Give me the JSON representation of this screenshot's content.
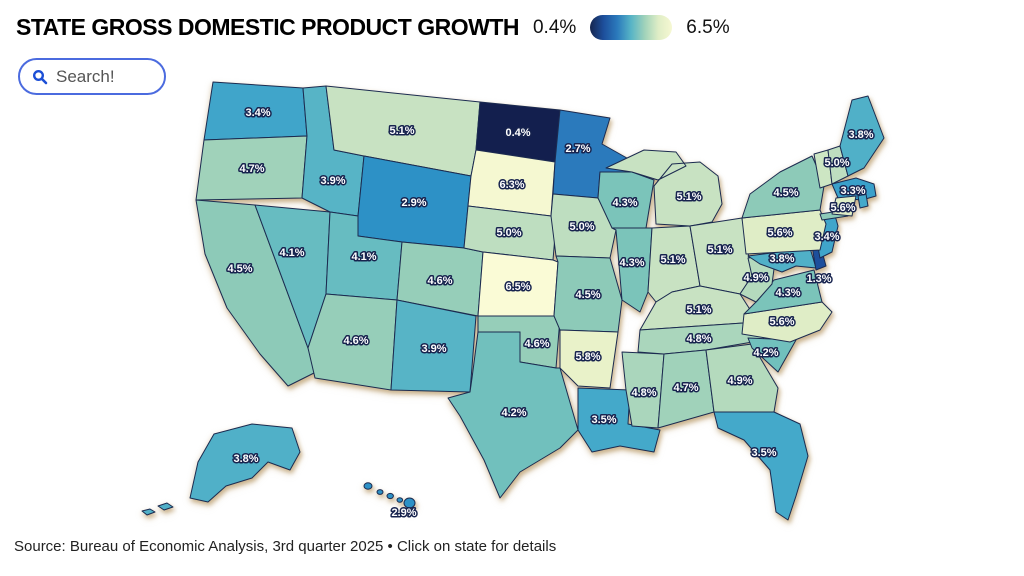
{
  "title": "STATE GROSS DOMESTIC PRODUCT GROWTH",
  "legend": {
    "min_label": "0.4%",
    "max_label": "6.5%"
  },
  "search": {
    "placeholder": "Search!"
  },
  "footer": {
    "source": "Source: Bureau of Economic Analysis, 3rd quarter 2025 • Click on state for details"
  },
  "colors": {
    "state_outline": "#1c2b50",
    "label_text": "#ffffff",
    "label_outline": "#17234e",
    "search_border": "#4b6bdf",
    "search_icon": "#1c4fd6",
    "legend_gradient": [
      "#16254e",
      "#1d4f9c",
      "#2b7abc",
      "#57b4c6",
      "#a0d2ba",
      "#dfedc6",
      "#f6f8d2"
    ]
  },
  "chart_data": {
    "type": "choropleth",
    "region": "United States",
    "title": "STATE GROSS DOMESTIC PRODUCT GROWTH",
    "unit": "%",
    "scale": {
      "min": 0.4,
      "max": 6.5,
      "low_color": "#131f4e",
      "high_color": "#fafbd6"
    },
    "states": [
      {
        "abbr": "WA",
        "name": "Washington",
        "value": 3.4,
        "label": "3.4%",
        "color": "#40a5ca"
      },
      {
        "abbr": "OR",
        "name": "Oregon",
        "value": 4.7,
        "label": "4.7%",
        "color": "#a0d2ba"
      },
      {
        "abbr": "CA",
        "name": "California",
        "value": 4.5,
        "label": "4.5%",
        "color": "#8dcab8"
      },
      {
        "abbr": "NV",
        "name": "Nevada",
        "value": 4.1,
        "label": "4.1%",
        "color": "#67bcc1"
      },
      {
        "abbr": "ID",
        "name": "Idaho",
        "value": 3.9,
        "label": "3.9%",
        "color": "#57b4c6"
      },
      {
        "abbr": "MT",
        "name": "Montana",
        "value": 5.1,
        "label": "5.1%",
        "color": "#c8e2c2"
      },
      {
        "abbr": "WY",
        "name": "Wyoming",
        "value": 2.9,
        "label": "2.9%",
        "color": "#2d91c6"
      },
      {
        "abbr": "UT",
        "name": "Utah",
        "value": 4.1,
        "label": "4.1%",
        "color": "#67bcc1"
      },
      {
        "abbr": "CO",
        "name": "Colorado",
        "value": 4.6,
        "label": "4.6%",
        "color": "#96ceb9"
      },
      {
        "abbr": "AZ",
        "name": "Arizona",
        "value": 4.6,
        "label": "4.6%",
        "color": "#96ceb9"
      },
      {
        "abbr": "NM",
        "name": "New Mexico",
        "value": 3.9,
        "label": "3.9%",
        "color": "#57b4c6"
      },
      {
        "abbr": "ND",
        "name": "North Dakota",
        "value": 0.4,
        "label": "0.4%",
        "color": "#131f4e"
      },
      {
        "abbr": "SD",
        "name": "South Dakota",
        "value": 6.3,
        "label": "6.3%",
        "color": "#f5f8d1"
      },
      {
        "abbr": "NE",
        "name": "Nebraska",
        "value": 5.0,
        "label": "5.0%",
        "color": "#bedec0"
      },
      {
        "abbr": "KS",
        "name": "Kansas",
        "value": 6.5,
        "label": "6.5%",
        "color": "#fafbd6"
      },
      {
        "abbr": "OK",
        "name": "Oklahoma",
        "value": 4.6,
        "label": "4.6%",
        "color": "#96ceb9"
      },
      {
        "abbr": "TX",
        "name": "Texas",
        "value": 4.2,
        "label": "4.2%",
        "color": "#71c0bd"
      },
      {
        "abbr": "MN",
        "name": "Minnesota",
        "value": 2.7,
        "label": "2.7%",
        "color": "#2b7abc"
      },
      {
        "abbr": "IA",
        "name": "Iowa",
        "value": 5.0,
        "label": "5.0%",
        "color": "#bedec0"
      },
      {
        "abbr": "MO",
        "name": "Missouri",
        "value": 4.5,
        "label": "4.5%",
        "color": "#8dcab8"
      },
      {
        "abbr": "AR",
        "name": "Arkansas",
        "value": 5.8,
        "label": "5.8%",
        "color": "#e9f2c9"
      },
      {
        "abbr": "LA",
        "name": "Louisiana",
        "value": 3.5,
        "label": "3.5%",
        "color": "#44a9ca"
      },
      {
        "abbr": "WI",
        "name": "Wisconsin",
        "value": 4.3,
        "label": "4.3%",
        "color": "#7bc4ba"
      },
      {
        "abbr": "IL",
        "name": "Illinois",
        "value": 4.3,
        "label": "4.3%",
        "color": "#7bc4ba"
      },
      {
        "abbr": "MS",
        "name": "Mississippi",
        "value": 4.8,
        "label": "4.8%",
        "color": "#aad6bc"
      },
      {
        "abbr": "MI",
        "name": "Michigan",
        "value": 5.1,
        "label": "5.1%",
        "color": "#c8e2c2"
      },
      {
        "abbr": "IN",
        "name": "Indiana",
        "value": 5.1,
        "label": "5.1%",
        "color": "#c8e2c2"
      },
      {
        "abbr": "OH",
        "name": "Ohio",
        "value": 5.1,
        "label": "5.1%",
        "color": "#c8e2c2"
      },
      {
        "abbr": "KY",
        "name": "Kentucky",
        "value": 5.1,
        "label": "5.1%",
        "color": "#c8e2c2"
      },
      {
        "abbr": "TN",
        "name": "Tennessee",
        "value": 4.8,
        "label": "4.8%",
        "color": "#aad6bc"
      },
      {
        "abbr": "AL",
        "name": "Alabama",
        "value": 4.7,
        "label": "4.7%",
        "color": "#a0d2ba"
      },
      {
        "abbr": "GA",
        "name": "Georgia",
        "value": 4.9,
        "label": "4.9%",
        "color": "#b4dabd"
      },
      {
        "abbr": "FL",
        "name": "Florida",
        "value": 3.5,
        "label": "3.5%",
        "color": "#44a9ca"
      },
      {
        "abbr": "SC",
        "name": "South Carolina",
        "value": 4.2,
        "label": "4.2%",
        "color": "#71c0bd"
      },
      {
        "abbr": "NC",
        "name": "North Carolina",
        "value": 5.6,
        "label": "5.6%",
        "color": "#dfedc6"
      },
      {
        "abbr": "VA",
        "name": "Virginia",
        "value": 4.3,
        "label": "4.3%",
        "color": "#7bc4ba"
      },
      {
        "abbr": "WV",
        "name": "West Virginia",
        "value": 4.9,
        "label": "4.9%",
        "color": "#b4dabd"
      },
      {
        "abbr": "MD",
        "name": "Maryland",
        "value": 3.8,
        "label": "3.8%",
        "color": "#50b0c8"
      },
      {
        "abbr": "DE",
        "name": "Delaware",
        "value": 1.3,
        "label": "1.3%",
        "color": "#1d4f9c"
      },
      {
        "abbr": "NJ",
        "name": "New Jersey",
        "value": 3.4,
        "label": "3.4%",
        "color": "#40a5ca"
      },
      {
        "abbr": "PA",
        "name": "Pennsylvania",
        "value": 5.6,
        "label": "5.6%",
        "color": "#dfedc6"
      },
      {
        "abbr": "NY",
        "name": "New York",
        "value": 4.5,
        "label": "4.5%",
        "color": "#8dcab8"
      },
      {
        "abbr": "VT",
        "name": "Vermont",
        "value": null,
        "label": "",
        "color": "#cde6c3"
      },
      {
        "abbr": "NH",
        "name": "New Hampshire",
        "value": 5.0,
        "label": "5.0%",
        "color": "#bedec0"
      },
      {
        "abbr": "MA",
        "name": "Massachusetts",
        "value": 3.3,
        "label": "3.3%",
        "color": "#3aa0ca"
      },
      {
        "abbr": "CT",
        "name": "Connecticut",
        "value": 5.6,
        "label": "5.6%",
        "color": "#dfedc6"
      },
      {
        "abbr": "RI",
        "name": "Rhode Island",
        "value": null,
        "label": "",
        "color": "#44a9ca"
      },
      {
        "abbr": "ME",
        "name": "Maine",
        "value": 3.8,
        "label": "3.8%",
        "color": "#50b0c8"
      },
      {
        "abbr": "AK",
        "name": "Alaska",
        "value": 3.8,
        "label": "3.8%",
        "color": "#50b0c8"
      },
      {
        "abbr": "HI",
        "name": "Hawaii",
        "value": 2.9,
        "label": "2.9%",
        "color": "#2d91c6"
      }
    ]
  }
}
